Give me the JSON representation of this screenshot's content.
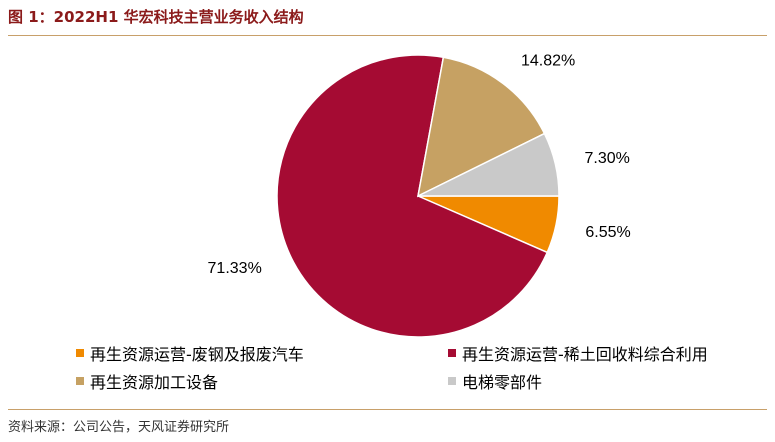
{
  "header": {
    "title": "图 1：2022H1 华宏科技主营业务收入结构"
  },
  "footer": {
    "source": "资料来源：公司公告，天风证券研究所"
  },
  "chart_data": {
    "type": "pie",
    "series": [
      {
        "name": "再生资源运营-废钢及报废汽车",
        "value": 6.55,
        "label": "6.55%",
        "color": "#f08a00"
      },
      {
        "name": "再生资源运营-稀土回收料综合利用",
        "value": 71.33,
        "label": "71.33%",
        "color": "#a50b33"
      },
      {
        "name": "再生资源加工设备",
        "value": 14.82,
        "label": "14.82%",
        "color": "#c6a163"
      },
      {
        "name": "电梯零部件",
        "value": 7.3,
        "label": "7.30%",
        "color": "#c9c9c9"
      }
    ],
    "legend_order": [
      0,
      1,
      2,
      3
    ],
    "legend_position": "bottom"
  }
}
